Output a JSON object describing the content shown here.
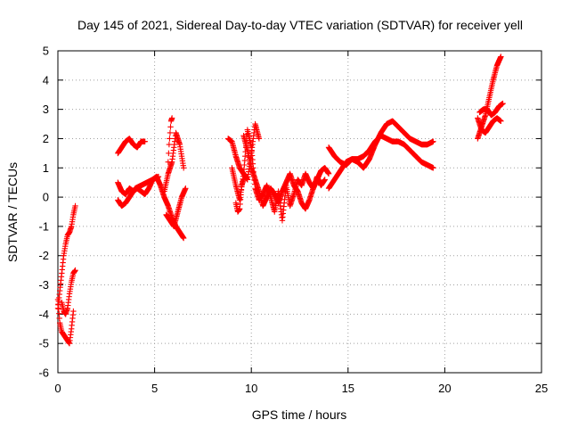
{
  "chart_data": {
    "type": "scatter",
    "title": "Day 145 of 2021, Sidereal Day-to-day VTEC variation (SDTVAR) for receiver yell",
    "xlabel": "GPS time / hours",
    "ylabel": "SDTVAR / TECUs",
    "xlim": [
      0,
      25
    ],
    "ylim": [
      -6,
      5
    ],
    "xticks": [
      0,
      5,
      10,
      15,
      20,
      25
    ],
    "yticks": [
      -6,
      -5,
      -4,
      -3,
      -2,
      -1,
      0,
      1,
      2,
      3,
      4,
      5
    ],
    "grid": true,
    "marker": "+",
    "color": "#ff0000",
    "series_segments": [
      {
        "name": "arc-a1",
        "x": [
          0.0,
          0.1,
          0.2,
          0.3,
          0.4,
          0.5,
          0.6,
          0.7,
          0.8,
          0.9
        ],
        "y": [
          -3.8,
          -3.2,
          -2.6,
          -2.0,
          -1.6,
          -1.3,
          -1.2,
          -1.0,
          -0.6,
          -0.3
        ]
      },
      {
        "name": "arc-a2",
        "x": [
          0.0,
          0.1,
          0.2,
          0.3,
          0.4,
          0.5,
          0.6,
          0.7,
          0.8
        ],
        "y": [
          -3.5,
          -4.3,
          -4.6,
          -4.7,
          -4.8,
          -4.9,
          -5.0,
          -4.5,
          -3.9
        ]
      },
      {
        "name": "arc-a3",
        "x": [
          0.2,
          0.3,
          0.4,
          0.5,
          0.6,
          0.7,
          0.8,
          0.9
        ],
        "y": [
          -3.6,
          -3.9,
          -4.0,
          -3.8,
          -3.3,
          -2.9,
          -2.6,
          -2.5
        ]
      },
      {
        "name": "arc-b1",
        "x": [
          3.1,
          3.3,
          3.5,
          3.7,
          3.9,
          4.1,
          4.3,
          4.5
        ],
        "y": [
          1.5,
          1.7,
          1.9,
          2.0,
          1.8,
          1.7,
          1.9,
          1.9
        ]
      },
      {
        "name": "arc-b2",
        "x": [
          3.1,
          3.3,
          3.5,
          3.7,
          3.9,
          4.1,
          4.3,
          4.5,
          4.7,
          4.9,
          5.1,
          5.3,
          5.5,
          5.7,
          5.9,
          6.1,
          6.3,
          6.5
        ],
        "y": [
          0.5,
          0.2,
          0.1,
          0.3,
          0.2,
          0.3,
          0.2,
          0.1,
          0.3,
          0.6,
          0.7,
          0.4,
          0.0,
          -0.3,
          -0.7,
          -1.0,
          -1.2,
          -1.4
        ]
      },
      {
        "name": "arc-b3",
        "x": [
          3.1,
          3.3,
          3.5,
          3.7,
          4.0,
          4.3,
          4.6,
          4.9,
          5.2
        ],
        "y": [
          -0.1,
          -0.3,
          -0.2,
          0.0,
          0.3,
          0.4,
          0.5,
          0.6,
          0.7
        ]
      },
      {
        "name": "arc-b4",
        "x": [
          5.5,
          5.7,
          5.9,
          6.1,
          6.3,
          6.5
        ],
        "y": [
          0.2,
          0.8,
          1.2,
          2.2,
          1.8,
          1.0
        ]
      },
      {
        "name": "arc-b5",
        "x": [
          5.6,
          5.8,
          6.0,
          6.2,
          6.4,
          6.6
        ],
        "y": [
          -0.6,
          -0.8,
          -1.0,
          -0.5,
          0.0,
          0.3
        ]
      },
      {
        "name": "arc-b6",
        "x": [
          5.7,
          5.75,
          5.8,
          5.85,
          5.9
        ],
        "y": [
          1.2,
          1.8,
          2.2,
          2.6,
          2.7
        ]
      },
      {
        "name": "arc-c1",
        "x": [
          8.8,
          9.0,
          9.2,
          9.4,
          9.6,
          9.8,
          10.0,
          10.2,
          10.4
        ],
        "y": [
          2.0,
          1.9,
          1.4,
          1.0,
          0.8,
          0.6,
          1.5,
          2.5,
          2.0
        ]
      },
      {
        "name": "arc-c2",
        "x": [
          9.0,
          9.2,
          9.4,
          9.6,
          9.8,
          10.0,
          10.2,
          10.4,
          10.6,
          10.8,
          11.0,
          11.2,
          11.4,
          11.6,
          11.8,
          12.0,
          12.2,
          12.4,
          12.6,
          12.8,
          13.0,
          13.2,
          13.4,
          13.6,
          13.8
        ],
        "y": [
          1.0,
          0.4,
          -0.1,
          0.8,
          2.3,
          1.7,
          0.3,
          -0.1,
          0.1,
          0.4,
          0.0,
          -0.5,
          0.2,
          -0.8,
          0.4,
          -0.3,
          0.1,
          0.6,
          0.4,
          0.8,
          0.5,
          0.3,
          0.7,
          0.4,
          0.6
        ]
      },
      {
        "name": "arc-c3",
        "x": [
          9.6,
          9.8,
          10.0,
          10.2,
          10.4,
          10.6,
          10.8,
          11.0,
          11.2,
          11.4,
          11.6,
          11.8,
          12.0,
          12.2,
          12.4,
          12.6,
          12.8,
          13.0,
          13.2,
          13.4,
          13.6,
          13.8,
          14.0
        ],
        "y": [
          2.1,
          1.6,
          1.0,
          0.6,
          0.2,
          -0.3,
          0.0,
          0.3,
          0.1,
          -0.2,
          0.2,
          0.5,
          0.8,
          0.4,
          0.2,
          -0.2,
          -0.4,
          -0.1,
          0.3,
          0.6,
          0.9,
          1.0,
          0.8
        ]
      },
      {
        "name": "arc-c4",
        "x": [
          9.2,
          9.3,
          9.4,
          9.5,
          9.6
        ],
        "y": [
          -0.2,
          -0.5,
          -0.4,
          0.4,
          0.6
        ]
      },
      {
        "name": "arc-d1",
        "x": [
          14.0,
          14.3,
          14.6,
          14.9,
          15.2,
          15.5,
          15.8,
          16.1,
          16.4,
          16.7,
          17.0,
          17.3,
          17.6,
          17.9,
          18.2,
          18.5,
          18.8,
          19.1,
          19.4
        ],
        "y": [
          0.3,
          0.6,
          0.9,
          1.2,
          1.3,
          1.3,
          1.4,
          1.6,
          1.9,
          2.1,
          2.0,
          1.9,
          1.9,
          1.8,
          1.6,
          1.4,
          1.2,
          1.1,
          1.0
        ]
      },
      {
        "name": "arc-d2",
        "x": [
          14.0,
          14.3,
          14.6,
          14.9,
          15.2,
          15.5,
          15.8,
          16.1,
          16.4,
          16.7,
          17.0,
          17.3,
          17.6,
          17.9,
          18.2,
          18.5,
          18.8,
          19.1,
          19.4
        ],
        "y": [
          1.7,
          1.4,
          1.2,
          1.1,
          1.3,
          1.2,
          1.0,
          1.3,
          1.8,
          2.2,
          2.5,
          2.6,
          2.4,
          2.2,
          2.0,
          1.9,
          1.8,
          1.8,
          1.9
        ]
      },
      {
        "name": "arc-e1",
        "x": [
          21.7,
          21.9,
          22.1,
          22.3,
          22.5,
          22.7,
          22.9
        ],
        "y": [
          2.0,
          2.4,
          2.8,
          3.4,
          4.0,
          4.5,
          4.8
        ]
      },
      {
        "name": "arc-e2",
        "x": [
          21.7,
          21.9,
          22.1,
          22.3,
          22.5,
          22.7,
          22.9
        ],
        "y": [
          2.7,
          2.3,
          2.2,
          2.4,
          2.6,
          2.7,
          2.6
        ]
      },
      {
        "name": "arc-e3",
        "x": [
          21.8,
          22.0,
          22.2,
          22.4,
          22.6,
          22.8,
          23.0
        ],
        "y": [
          2.9,
          3.0,
          3.0,
          2.8,
          2.9,
          3.1,
          3.2
        ]
      }
    ]
  }
}
